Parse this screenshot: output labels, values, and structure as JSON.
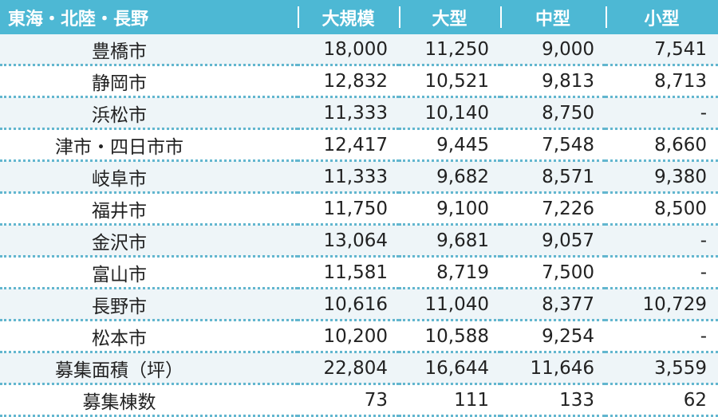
{
  "table": {
    "headers": [
      "東海・北陸・長野",
      "大規模",
      "大型",
      "中型",
      "小型"
    ],
    "rows": [
      {
        "label": "豊橋市",
        "values": [
          "18,000",
          "11,250",
          "9,000",
          "7,541"
        ]
      },
      {
        "label": "静岡市",
        "values": [
          "12,832",
          "10,521",
          "9,813",
          "8,713"
        ]
      },
      {
        "label": "浜松市",
        "values": [
          "11,333",
          "10,140",
          "8,750",
          "-"
        ]
      },
      {
        "label": "津市・四日市市",
        "values": [
          "12,417",
          "9,445",
          "7,548",
          "8,660"
        ]
      },
      {
        "label": "岐阜市",
        "values": [
          "11,333",
          "9,682",
          "8,571",
          "9,380"
        ]
      },
      {
        "label": "福井市",
        "values": [
          "11,750",
          "9,100",
          "7,226",
          "8,500"
        ]
      },
      {
        "label": "金沢市",
        "values": [
          "13,064",
          "9,681",
          "9,057",
          "-"
        ]
      },
      {
        "label": "富山市",
        "values": [
          "11,581",
          "8,719",
          "7,500",
          "-"
        ]
      },
      {
        "label": "長野市",
        "values": [
          "10,616",
          "11,040",
          "8,377",
          "10,729"
        ]
      },
      {
        "label": "松本市",
        "values": [
          "10,200",
          "10,588",
          "9,254",
          "-"
        ]
      },
      {
        "label": "募集面積（坪）",
        "values": [
          "22,804",
          "16,644",
          "11,646",
          "3,559"
        ]
      },
      {
        "label": "募集棟数",
        "values": [
          "73",
          "111",
          "133",
          "62"
        ]
      }
    ]
  },
  "colors": {
    "header_bg": "#4db8d4",
    "row_alt_bg": "#eef5f8",
    "divider": "#62b6cf"
  }
}
